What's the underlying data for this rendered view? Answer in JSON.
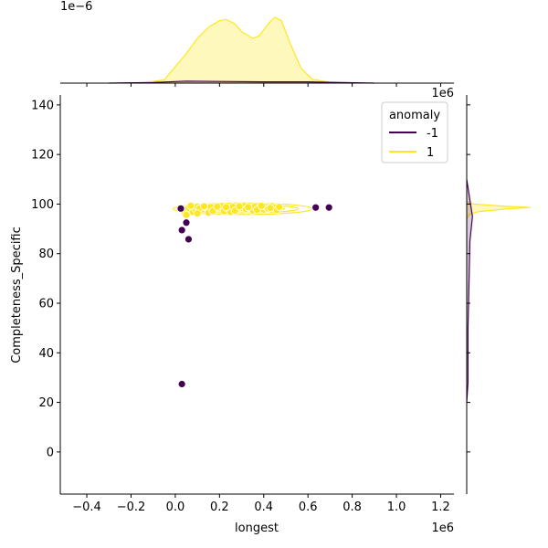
{
  "chart_data": {
    "type": "scatter",
    "kind": "jointplot",
    "xlabel": "longest",
    "ylabel": "Completeness_Specific",
    "x_offset_text": "1e6",
    "top_marginal_offset_text": "1e−6",
    "xlim": [
      -0.52,
      1.26
    ],
    "ylim": [
      -17,
      144
    ],
    "x_ticks": [
      -0.4,
      -0.2,
      0.0,
      0.2,
      0.4,
      0.6,
      0.8,
      1.0,
      1.2
    ],
    "x_tick_labels": [
      "−0.4",
      "−0.2",
      "0.0",
      "0.2",
      "0.4",
      "0.6",
      "0.8",
      "1.0",
      "1.2"
    ],
    "y_ticks": [
      0,
      20,
      40,
      60,
      80,
      100,
      120,
      140
    ],
    "y_tick_labels": [
      "0",
      "20",
      "40",
      "60",
      "80",
      "100",
      "120",
      "140"
    ],
    "grid": false,
    "legend": {
      "title": "anomaly",
      "placement": "top-right",
      "entries": [
        {
          "label": "-1",
          "color": "#440154"
        },
        {
          "label": "1",
          "color": "#fde725"
        }
      ]
    },
    "colors": {
      "anomaly_neg": "#440154",
      "anomaly_pos": "#fde725"
    },
    "series": [
      {
        "name": "-1",
        "points": [
          [
            0.025,
            98.2
          ],
          [
            0.05,
            92.5
          ],
          [
            0.03,
            89.5
          ],
          [
            0.06,
            85.8
          ],
          [
            0.03,
            27.4
          ],
          [
            0.635,
            98.6
          ],
          [
            0.695,
            98.6
          ]
        ]
      },
      {
        "name": "1",
        "points": [
          [
            0.04,
            97.0
          ],
          [
            0.06,
            98.5
          ],
          [
            0.08,
            96.8
          ],
          [
            0.09,
            98.0
          ],
          [
            0.1,
            99.0
          ],
          [
            0.12,
            97.8
          ],
          [
            0.14,
            98.6
          ],
          [
            0.15,
            96.5
          ],
          [
            0.16,
            98.8
          ],
          [
            0.18,
            97.5
          ],
          [
            0.2,
            98.4
          ],
          [
            0.21,
            99.2
          ],
          [
            0.22,
            97.1
          ],
          [
            0.24,
            98.1
          ],
          [
            0.25,
            96.8
          ],
          [
            0.26,
            98.9
          ],
          [
            0.28,
            97.6
          ],
          [
            0.3,
            98.5
          ],
          [
            0.31,
            99.4
          ],
          [
            0.32,
            97.9
          ],
          [
            0.34,
            98.2
          ],
          [
            0.35,
            97.4
          ],
          [
            0.36,
            99.0
          ],
          [
            0.38,
            98.3
          ],
          [
            0.4,
            97.8
          ],
          [
            0.41,
            98.9
          ],
          [
            0.42,
            98.1
          ],
          [
            0.44,
            99.2
          ],
          [
            0.45,
            98.6
          ],
          [
            0.46,
            97.6
          ],
          [
            0.05,
            95.6
          ],
          [
            0.07,
            99.3
          ],
          [
            0.11,
            98.3
          ],
          [
            0.13,
            99.1
          ],
          [
            0.17,
            97.2
          ],
          [
            0.19,
            99.0
          ],
          [
            0.23,
            98.7
          ],
          [
            0.27,
            97.3
          ],
          [
            0.29,
            99.1
          ],
          [
            0.33,
            98.7
          ],
          [
            0.37,
            97.7
          ],
          [
            0.39,
            99.3
          ],
          [
            0.43,
            98.4
          ],
          [
            0.1,
            96.2
          ],
          [
            0.47,
            98.9
          ]
        ],
        "kde_ellipse": {
          "center": [
            0.36,
            98.5
          ],
          "x_extent": [
            -0.01,
            0.62
          ],
          "y_extent": [
            95.8,
            100.4
          ]
        }
      }
    ],
    "top_marginal": {
      "series": [
        {
          "name": "1",
          "density_shape": [
            [
              -0.15,
              0.0
            ],
            [
              -0.05,
              0.05
            ],
            [
              0.0,
              0.25
            ],
            [
              0.05,
              0.45
            ],
            [
              0.1,
              0.68
            ],
            [
              0.15,
              0.85
            ],
            [
              0.2,
              0.95
            ],
            [
              0.23,
              0.97
            ],
            [
              0.27,
              0.9
            ],
            [
              0.3,
              0.78
            ],
            [
              0.35,
              0.68
            ],
            [
              0.38,
              0.72
            ],
            [
              0.42,
              0.9
            ],
            [
              0.45,
              1.0
            ],
            [
              0.48,
              0.95
            ],
            [
              0.52,
              0.6
            ],
            [
              0.57,
              0.22
            ],
            [
              0.62,
              0.06
            ],
            [
              0.7,
              0.01
            ],
            [
              0.8,
              0.0
            ]
          ]
        },
        {
          "name": "-1",
          "density_shape": [
            [
              -0.3,
              0.0
            ],
            [
              -0.1,
              0.01
            ],
            [
              0.05,
              0.03
            ],
            [
              0.2,
              0.025
            ],
            [
              0.4,
              0.02
            ],
            [
              0.6,
              0.02
            ],
            [
              0.75,
              0.01
            ],
            [
              0.9,
              0.0
            ]
          ]
        }
      ]
    },
    "right_marginal": {
      "series": [
        {
          "name": "1",
          "density_shape": [
            [
              94,
              0.0
            ],
            [
              96,
              0.05
            ],
            [
              97,
              0.2
            ],
            [
              98,
              0.6
            ],
            [
              98.6,
              1.0
            ],
            [
              99.2,
              0.55
            ],
            [
              100,
              0.1
            ],
            [
              101,
              0.0
            ]
          ]
        },
        {
          "name": "-1",
          "density_shape": [
            [
              20,
              0.0
            ],
            [
              28,
              0.02
            ],
            [
              50,
              0.02
            ],
            [
              85,
              0.05
            ],
            [
              95,
              0.09
            ],
            [
              100,
              0.06
            ],
            [
              110,
              0.0
            ]
          ]
        }
      ]
    }
  }
}
